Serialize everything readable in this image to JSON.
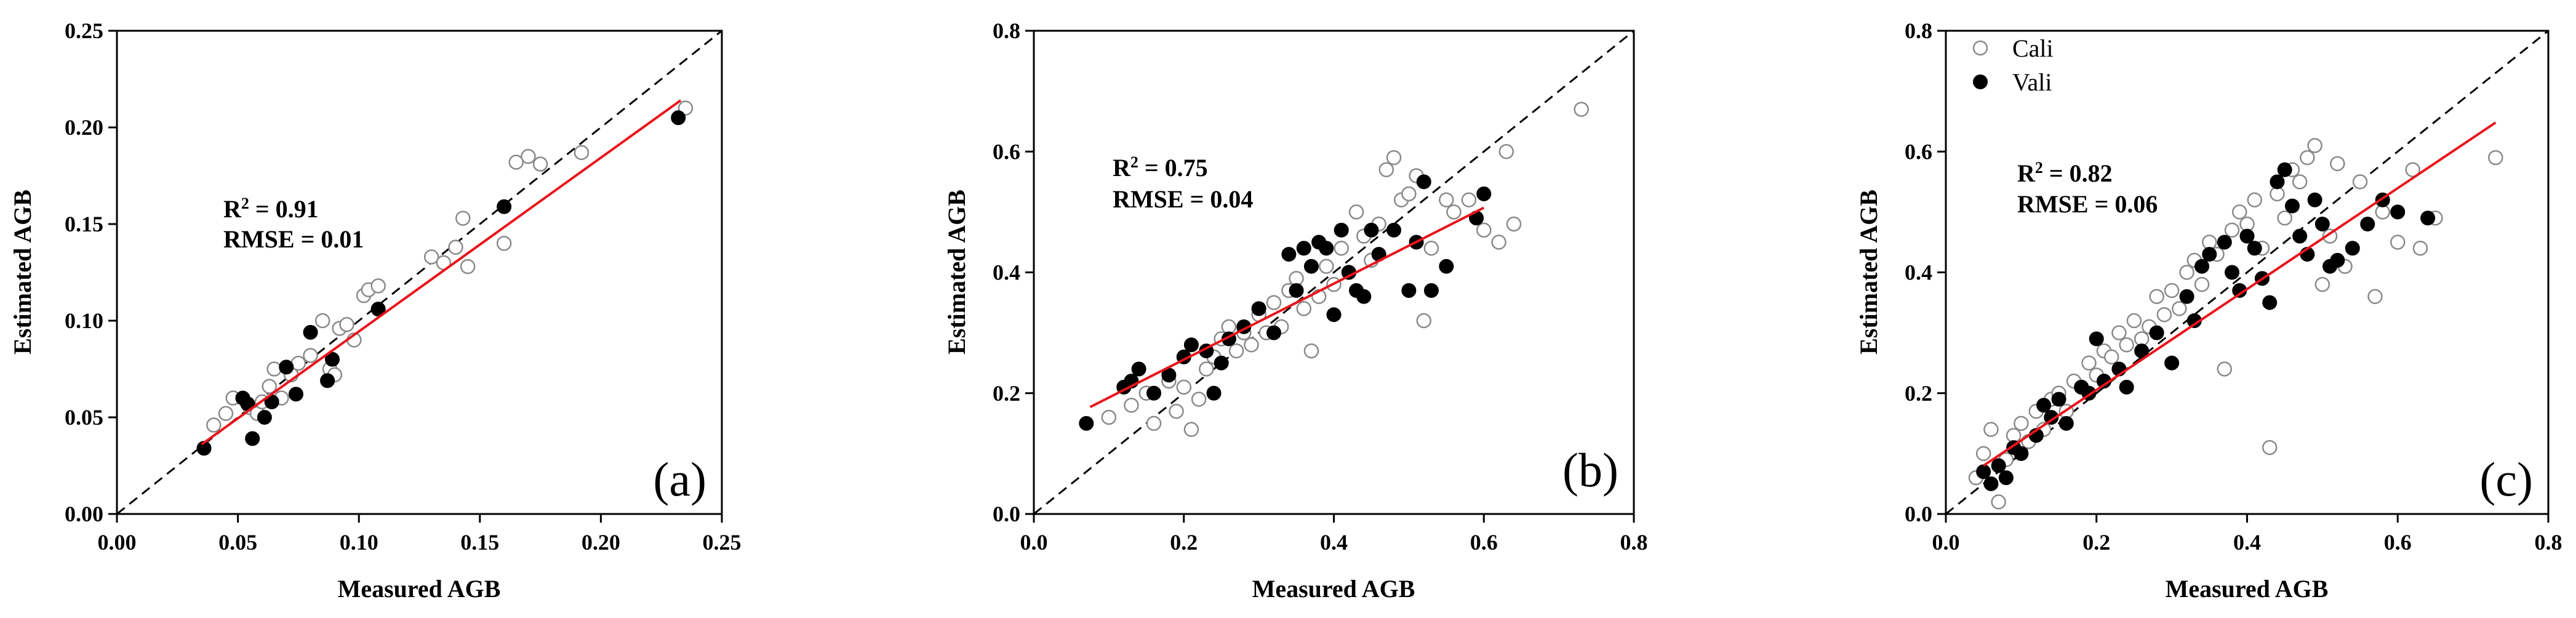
{
  "chart_data": [
    {
      "type": "scatter",
      "panel_label": "(a)",
      "xlabel": "Measured AGB",
      "ylabel": "Estimated AGB",
      "xlim": [
        0,
        0.25
      ],
      "ylim": [
        0,
        0.25
      ],
      "xticks": [
        "0.00",
        "0.05",
        "0.10",
        "0.15",
        "0.20",
        "0.25"
      ],
      "yticks": [
        "0.00",
        "0.05",
        "0.10",
        "0.15",
        "0.20",
        "0.25"
      ],
      "r2_label": "R",
      "r2_sup": "2",
      "r2_value": " = 0.91",
      "rmse_text": "RMSE = 0.01",
      "identity_line": true,
      "fit_line": {
        "x": [
          0.035,
          0.233
        ],
        "y": [
          0.036,
          0.214
        ],
        "color": "#e8141b"
      },
      "series": [
        {
          "name": "Cali",
          "marker": "open-circle",
          "color": "#8a8a8a",
          "points": [
            [
              0.04,
              0.046
            ],
            [
              0.045,
              0.052
            ],
            [
              0.048,
              0.06
            ],
            [
              0.055,
              0.055
            ],
            [
              0.058,
              0.052
            ],
            [
              0.06,
              0.058
            ],
            [
              0.063,
              0.066
            ],
            [
              0.065,
              0.075
            ],
            [
              0.068,
              0.06
            ],
            [
              0.072,
              0.072
            ],
            [
              0.075,
              0.078
            ],
            [
              0.08,
              0.082
            ],
            [
              0.085,
              0.1
            ],
            [
              0.088,
              0.075
            ],
            [
              0.09,
              0.072
            ],
            [
              0.092,
              0.096
            ],
            [
              0.095,
              0.098
            ],
            [
              0.098,
              0.09
            ],
            [
              0.102,
              0.113
            ],
            [
              0.104,
              0.116
            ],
            [
              0.108,
              0.118
            ],
            [
              0.13,
              0.133
            ],
            [
              0.135,
              0.13
            ],
            [
              0.14,
              0.138
            ],
            [
              0.143,
              0.153
            ],
            [
              0.145,
              0.128
            ],
            [
              0.16,
              0.14
            ],
            [
              0.165,
              0.182
            ],
            [
              0.17,
              0.185
            ],
            [
              0.175,
              0.181
            ],
            [
              0.192,
              0.187
            ],
            [
              0.235,
              0.21
            ]
          ]
        },
        {
          "name": "Vali",
          "marker": "filled-circle",
          "color": "#000000",
          "points": [
            [
              0.036,
              0.034
            ],
            [
              0.052,
              0.06
            ],
            [
              0.054,
              0.057
            ],
            [
              0.056,
              0.039
            ],
            [
              0.061,
              0.05
            ],
            [
              0.064,
              0.058
            ],
            [
              0.07,
              0.076
            ],
            [
              0.074,
              0.062
            ],
            [
              0.08,
              0.094
            ],
            [
              0.087,
              0.069
            ],
            [
              0.089,
              0.08
            ],
            [
              0.108,
              0.106
            ],
            [
              0.16,
              0.159
            ],
            [
              0.232,
              0.205
            ]
          ]
        }
      ]
    },
    {
      "type": "scatter",
      "panel_label": "(b)",
      "xlabel": "Measured AGB",
      "ylabel": "Estimated AGB",
      "xlim": [
        0,
        0.8
      ],
      "ylim": [
        0,
        0.8
      ],
      "xticks": [
        "0.0",
        "0.2",
        "0.4",
        "0.6",
        "0.8"
      ],
      "yticks": [
        "0.0",
        "0.2",
        "0.4",
        "0.6",
        "0.8"
      ],
      "r2_label": "R",
      "r2_sup": "2",
      "r2_value": " = 0.75",
      "rmse_text": "RMSE = 0.04",
      "identity_line": true,
      "fit_line": {
        "x": [
          0.075,
          0.6
        ],
        "y": [
          0.177,
          0.507
        ],
        "color": "#e8141b"
      },
      "series": [
        {
          "name": "Cali",
          "marker": "open-circle",
          "color": "#8a8a8a",
          "points": [
            [
              0.1,
              0.16
            ],
            [
              0.13,
              0.18
            ],
            [
              0.15,
              0.2
            ],
            [
              0.16,
              0.15
            ],
            [
              0.18,
              0.22
            ],
            [
              0.19,
              0.17
            ],
            [
              0.2,
              0.21
            ],
            [
              0.21,
              0.14
            ],
            [
              0.22,
              0.19
            ],
            [
              0.23,
              0.24
            ],
            [
              0.24,
              0.26
            ],
            [
              0.25,
              0.29
            ],
            [
              0.26,
              0.31
            ],
            [
              0.27,
              0.27
            ],
            [
              0.28,
              0.3
            ],
            [
              0.29,
              0.28
            ],
            [
              0.3,
              0.33
            ],
            [
              0.31,
              0.3
            ],
            [
              0.32,
              0.35
            ],
            [
              0.33,
              0.31
            ],
            [
              0.34,
              0.37
            ],
            [
              0.35,
              0.39
            ],
            [
              0.36,
              0.34
            ],
            [
              0.37,
              0.27
            ],
            [
              0.38,
              0.36
            ],
            [
              0.39,
              0.41
            ],
            [
              0.4,
              0.38
            ],
            [
              0.41,
              0.44
            ],
            [
              0.42,
              0.4
            ],
            [
              0.43,
              0.5
            ],
            [
              0.44,
              0.46
            ],
            [
              0.45,
              0.42
            ],
            [
              0.46,
              0.48
            ],
            [
              0.47,
              0.57
            ],
            [
              0.48,
              0.59
            ],
            [
              0.49,
              0.52
            ],
            [
              0.5,
              0.53
            ],
            [
              0.51,
              0.56
            ],
            [
              0.52,
              0.32
            ],
            [
              0.53,
              0.44
            ],
            [
              0.55,
              0.52
            ],
            [
              0.56,
              0.5
            ],
            [
              0.58,
              0.52
            ],
            [
              0.6,
              0.47
            ],
            [
              0.62,
              0.45
            ],
            [
              0.63,
              0.6
            ],
            [
              0.64,
              0.48
            ],
            [
              0.73,
              0.67
            ]
          ]
        },
        {
          "name": "Vali",
          "marker": "filled-circle",
          "color": "#000000",
          "points": [
            [
              0.07,
              0.15
            ],
            [
              0.12,
              0.21
            ],
            [
              0.13,
              0.22
            ],
            [
              0.14,
              0.24
            ],
            [
              0.16,
              0.2
            ],
            [
              0.18,
              0.23
            ],
            [
              0.2,
              0.26
            ],
            [
              0.21,
              0.28
            ],
            [
              0.23,
              0.27
            ],
            [
              0.24,
              0.2
            ],
            [
              0.25,
              0.25
            ],
            [
              0.26,
              0.29
            ],
            [
              0.28,
              0.31
            ],
            [
              0.3,
              0.34
            ],
            [
              0.32,
              0.3
            ],
            [
              0.34,
              0.43
            ],
            [
              0.35,
              0.37
            ],
            [
              0.36,
              0.44
            ],
            [
              0.37,
              0.41
            ],
            [
              0.38,
              0.45
            ],
            [
              0.39,
              0.44
            ],
            [
              0.4,
              0.33
            ],
            [
              0.41,
              0.47
            ],
            [
              0.42,
              0.4
            ],
            [
              0.43,
              0.37
            ],
            [
              0.44,
              0.36
            ],
            [
              0.45,
              0.47
            ],
            [
              0.46,
              0.43
            ],
            [
              0.48,
              0.47
            ],
            [
              0.5,
              0.37
            ],
            [
              0.51,
              0.45
            ],
            [
              0.52,
              0.55
            ],
            [
              0.53,
              0.37
            ],
            [
              0.55,
              0.41
            ],
            [
              0.59,
              0.49
            ],
            [
              0.6,
              0.53
            ]
          ]
        }
      ]
    },
    {
      "type": "scatter",
      "panel_label": "(c)",
      "xlabel": "Measured AGB",
      "ylabel": "Estimated AGB",
      "xlim": [
        0,
        0.8
      ],
      "ylim": [
        0,
        0.8
      ],
      "xticks": [
        "0.0",
        "0.2",
        "0.4",
        "0.6",
        "0.8"
      ],
      "yticks": [
        "0.0",
        "0.2",
        "0.4",
        "0.6",
        "0.8"
      ],
      "r2_label": "R",
      "r2_sup": "2",
      "r2_value": " = 0.82",
      "rmse_text": "RMSE = 0.06",
      "identity_line": true,
      "legend": {
        "position": "top-left",
        "entries": [
          "Cali",
          "Vali"
        ]
      },
      "fit_line": {
        "x": [
          0.05,
          0.73
        ],
        "y": [
          0.08,
          0.648
        ],
        "color": "#e8141b"
      },
      "series": [
        {
          "name": "Cali",
          "marker": "open-circle",
          "color": "#8a8a8a",
          "points": [
            [
              0.04,
              0.06
            ],
            [
              0.05,
              0.1
            ],
            [
              0.06,
              0.14
            ],
            [
              0.07,
              0.02
            ],
            [
              0.08,
              0.09
            ],
            [
              0.09,
              0.13
            ],
            [
              0.1,
              0.15
            ],
            [
              0.11,
              0.12
            ],
            [
              0.12,
              0.17
            ],
            [
              0.13,
              0.14
            ],
            [
              0.14,
              0.19
            ],
            [
              0.15,
              0.2
            ],
            [
              0.16,
              0.17
            ],
            [
              0.17,
              0.22
            ],
            [
              0.18,
              0.21
            ],
            [
              0.19,
              0.25
            ],
            [
              0.2,
              0.23
            ],
            [
              0.21,
              0.27
            ],
            [
              0.22,
              0.26
            ],
            [
              0.23,
              0.3
            ],
            [
              0.24,
              0.28
            ],
            [
              0.25,
              0.32
            ],
            [
              0.26,
              0.29
            ],
            [
              0.27,
              0.31
            ],
            [
              0.28,
              0.36
            ],
            [
              0.29,
              0.33
            ],
            [
              0.3,
              0.37
            ],
            [
              0.31,
              0.34
            ],
            [
              0.32,
              0.4
            ],
            [
              0.33,
              0.42
            ],
            [
              0.34,
              0.38
            ],
            [
              0.35,
              0.45
            ],
            [
              0.36,
              0.43
            ],
            [
              0.37,
              0.24
            ],
            [
              0.38,
              0.47
            ],
            [
              0.39,
              0.5
            ],
            [
              0.4,
              0.48
            ],
            [
              0.41,
              0.52
            ],
            [
              0.42,
              0.44
            ],
            [
              0.43,
              0.11
            ],
            [
              0.44,
              0.53
            ],
            [
              0.45,
              0.49
            ],
            [
              0.46,
              0.57
            ],
            [
              0.47,
              0.55
            ],
            [
              0.48,
              0.59
            ],
            [
              0.49,
              0.61
            ],
            [
              0.5,
              0.38
            ],
            [
              0.51,
              0.46
            ],
            [
              0.52,
              0.58
            ],
            [
              0.53,
              0.41
            ],
            [
              0.55,
              0.55
            ],
            [
              0.57,
              0.36
            ],
            [
              0.58,
              0.5
            ],
            [
              0.6,
              0.45
            ],
            [
              0.62,
              0.57
            ],
            [
              0.63,
              0.44
            ],
            [
              0.65,
              0.49
            ],
            [
              0.73,
              0.59
            ]
          ]
        },
        {
          "name": "Vali",
          "marker": "filled-circle",
          "color": "#000000",
          "points": [
            [
              0.05,
              0.07
            ],
            [
              0.06,
              0.05
            ],
            [
              0.07,
              0.08
            ],
            [
              0.08,
              0.06
            ],
            [
              0.09,
              0.11
            ],
            [
              0.1,
              0.1
            ],
            [
              0.12,
              0.13
            ],
            [
              0.13,
              0.18
            ],
            [
              0.14,
              0.16
            ],
            [
              0.15,
              0.19
            ],
            [
              0.16,
              0.15
            ],
            [
              0.18,
              0.21
            ],
            [
              0.19,
              0.2
            ],
            [
              0.2,
              0.29
            ],
            [
              0.21,
              0.22
            ],
            [
              0.23,
              0.24
            ],
            [
              0.24,
              0.21
            ],
            [
              0.26,
              0.27
            ],
            [
              0.28,
              0.3
            ],
            [
              0.3,
              0.25
            ],
            [
              0.32,
              0.36
            ],
            [
              0.33,
              0.32
            ],
            [
              0.34,
              0.41
            ],
            [
              0.35,
              0.43
            ],
            [
              0.37,
              0.45
            ],
            [
              0.38,
              0.4
            ],
            [
              0.39,
              0.37
            ],
            [
              0.4,
              0.46
            ],
            [
              0.41,
              0.44
            ],
            [
              0.42,
              0.39
            ],
            [
              0.43,
              0.35
            ],
            [
              0.44,
              0.55
            ],
            [
              0.45,
              0.57
            ],
            [
              0.46,
              0.51
            ],
            [
              0.47,
              0.46
            ],
            [
              0.48,
              0.43
            ],
            [
              0.49,
              0.52
            ],
            [
              0.5,
              0.48
            ],
            [
              0.51,
              0.41
            ],
            [
              0.52,
              0.42
            ],
            [
              0.54,
              0.44
            ],
            [
              0.56,
              0.48
            ],
            [
              0.58,
              0.52
            ],
            [
              0.6,
              0.5
            ],
            [
              0.64,
              0.49
            ]
          ]
        }
      ]
    }
  ]
}
